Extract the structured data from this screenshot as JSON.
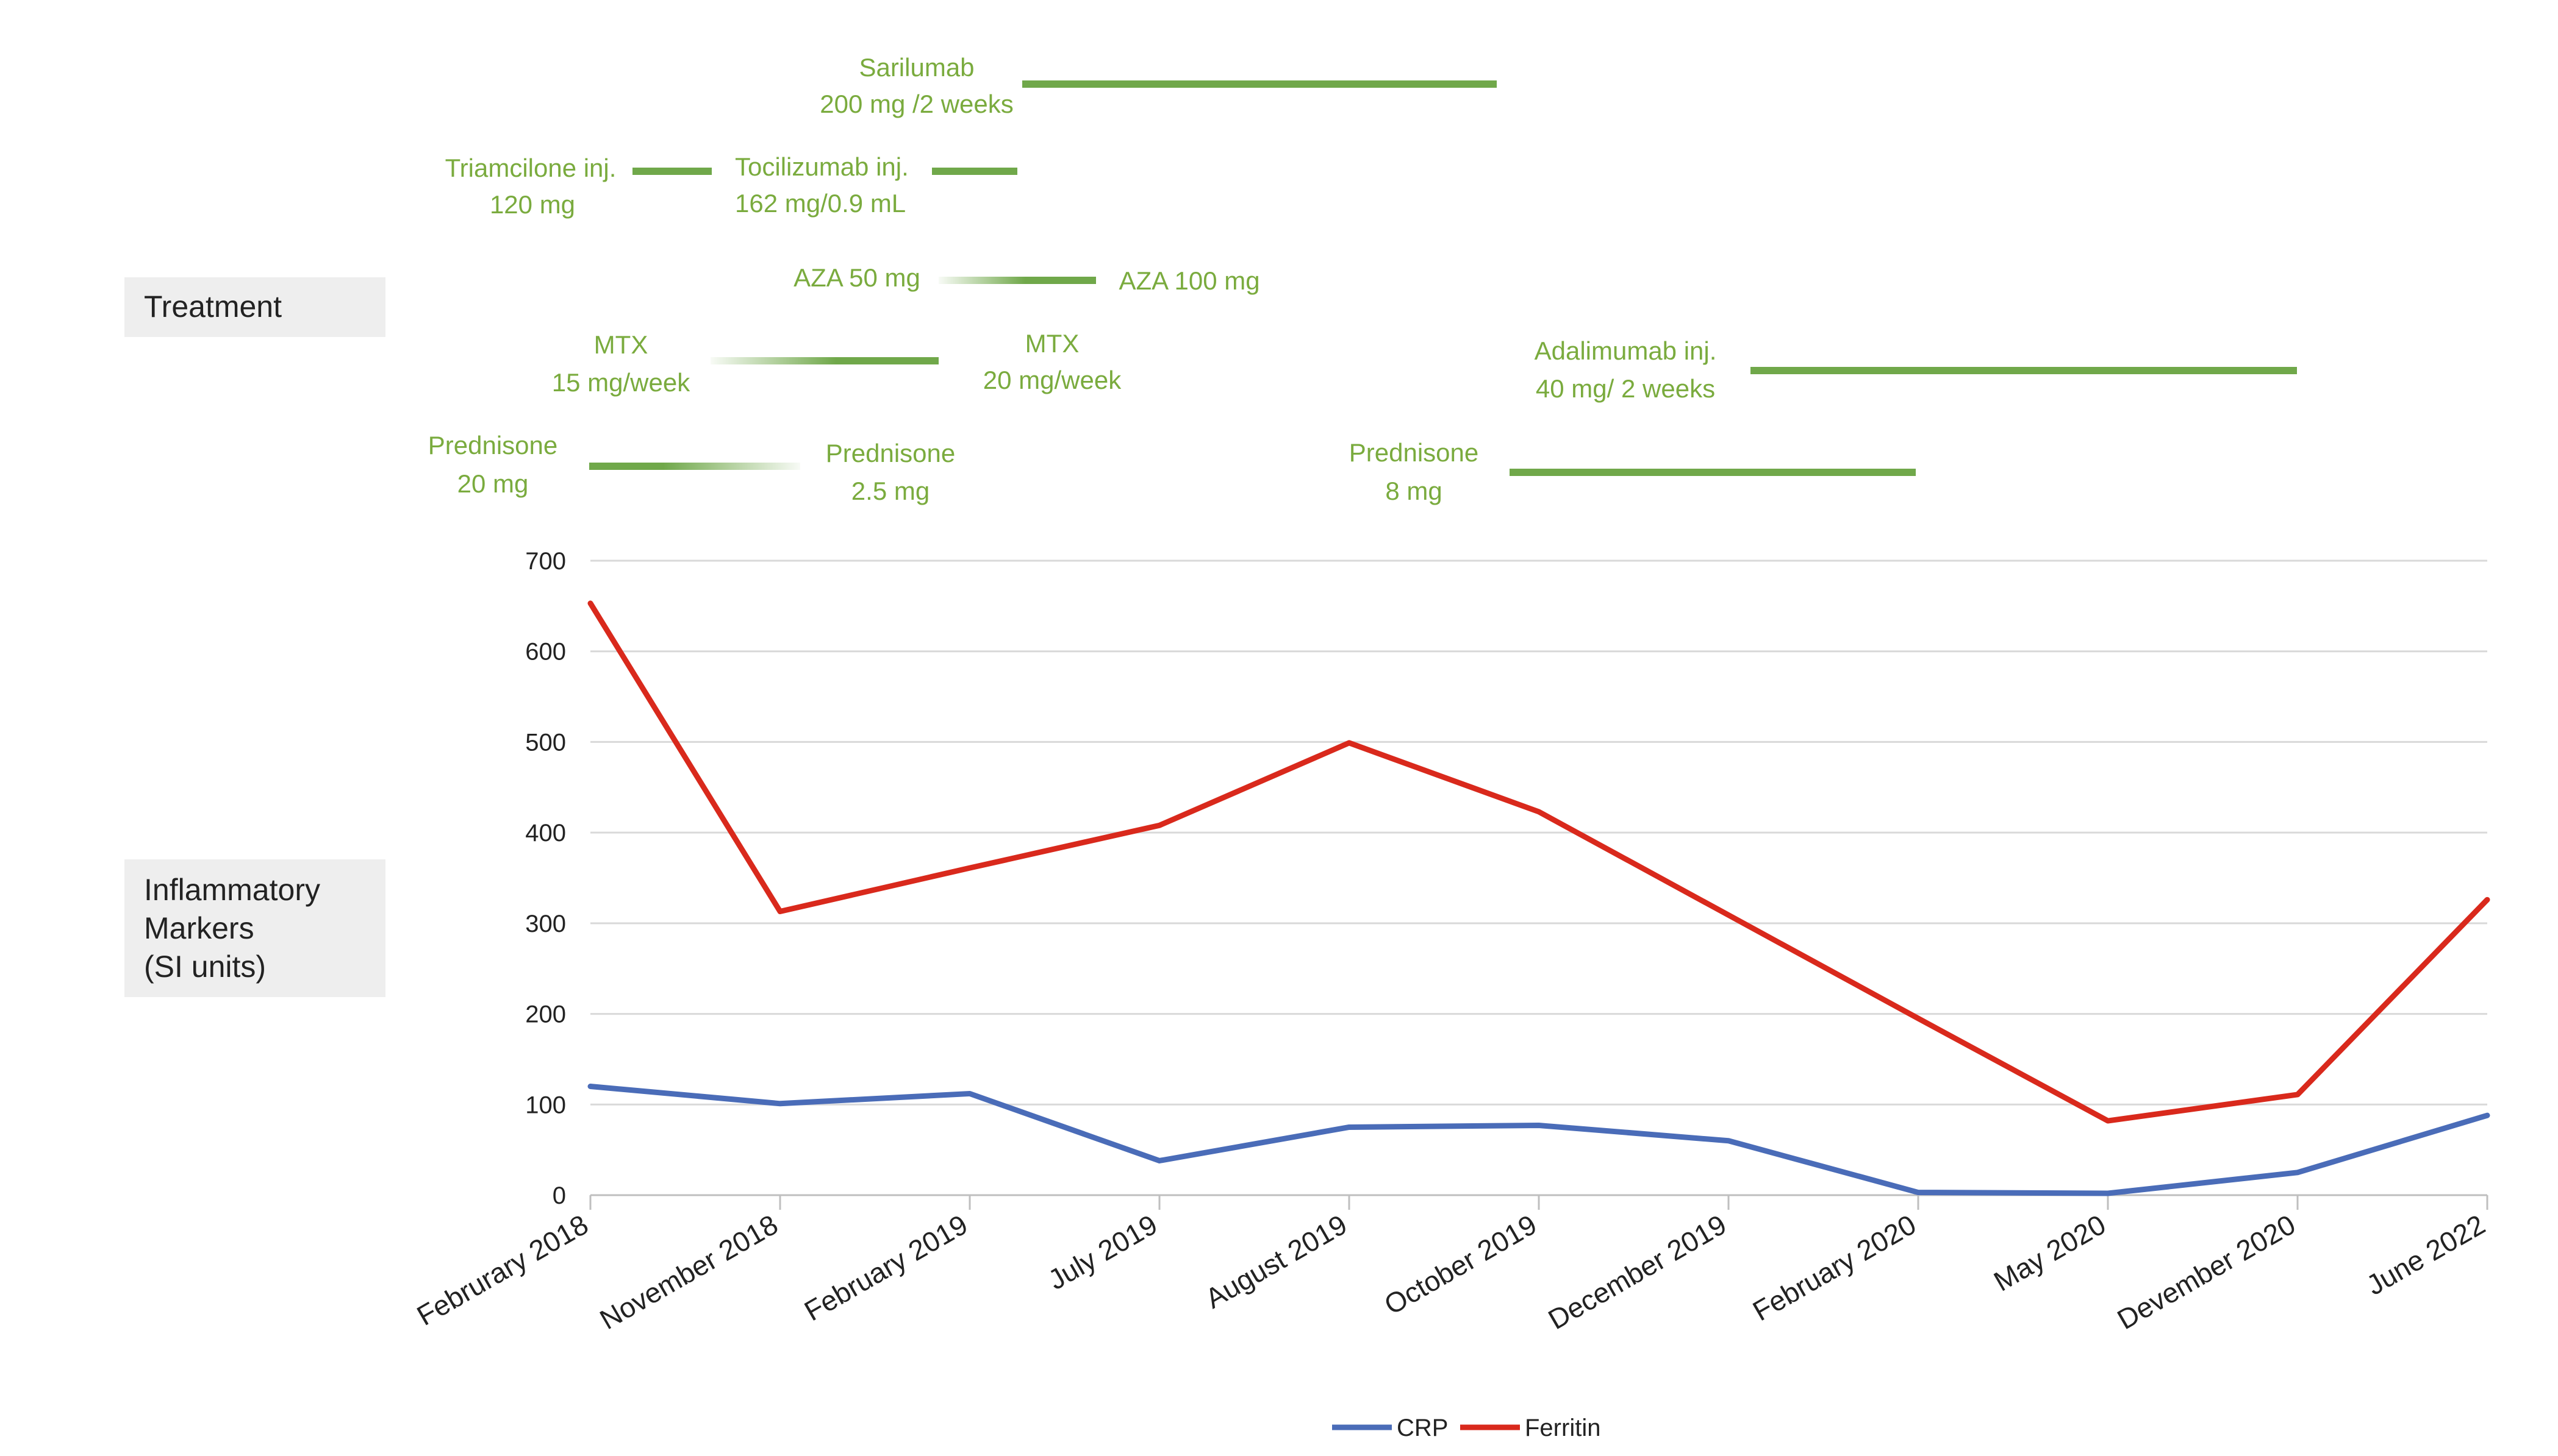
{
  "side_labels": {
    "treatment": "Treatment",
    "markers_lines": [
      "Inflammatory",
      "Markers",
      "(SI units)"
    ],
    "box_fill": "#eeeeee"
  },
  "treatments": [
    {
      "id": "sarilumab",
      "label_lines": [
        "Sarilumab",
        "200 mg /2 weeks"
      ],
      "start": "August 2019",
      "end_offset": -0.1,
      "start_offset": -0.8,
      "style": "solid"
    },
    {
      "id": "triamcilone",
      "label_lines": [
        "Triamcilone inj.",
        "120 mg"
      ],
      "style": "solid"
    },
    {
      "id": "tocilizumab",
      "label_lines": [
        "Tocilizumab inj.",
        "162 mg/0.9 mL"
      ],
      "style": "solid"
    },
    {
      "id": "aza",
      "label_lines": [
        "AZA 50 mg"
      ],
      "end_label": "AZA 100 mg",
      "style": "fade-in"
    },
    {
      "id": "mtx",
      "label_lines": [
        "MTX",
        "15 mg/week"
      ],
      "end_label_lines": [
        "MTX",
        "20 mg/week"
      ],
      "style": "fade-in"
    },
    {
      "id": "adalimumab",
      "label_lines": [
        "Adalimumab inj.",
        "40 mg/ 2 weeks"
      ],
      "style": "solid"
    },
    {
      "id": "prednisone1",
      "label_lines": [
        "Prednisone",
        "20 mg"
      ],
      "end_label_lines": [
        "Prednisone",
        "2.5 mg"
      ],
      "style": "fade-out"
    },
    {
      "id": "prednisone2",
      "label_lines": [
        "Prednisone",
        "8 mg"
      ],
      "style": "solid"
    }
  ],
  "colors": {
    "treatment_text": "#7aab3e",
    "treatment_bar": "#70a84a",
    "crp": "#4a6cb8",
    "ferritin": "#d9291c",
    "grid": "#d9d9d9",
    "axis_text": "#222222"
  },
  "chart_data": {
    "type": "line",
    "categories": [
      "Februrary 2018",
      "November 2018",
      "February 2019",
      "July 2019",
      "August 2019",
      "October 2019",
      "December 2019",
      "February 2020",
      "May 2020",
      "Devember 2020",
      "June 2022"
    ],
    "series": [
      {
        "name": "CRP",
        "values": [
          120,
          101,
          112,
          38,
          75,
          77,
          60,
          3,
          2,
          25,
          88
        ]
      },
      {
        "name": "Ferritin",
        "values": [
          653,
          313,
          361,
          408,
          499,
          423,
          309,
          195,
          82,
          111,
          326
        ]
      }
    ],
    "ylim": [
      0,
      700
    ],
    "yticks": [
      "0",
      "100",
      "200",
      "300",
      "400",
      "500",
      "600",
      "700"
    ],
    "grid": true,
    "legend": "bottom-center"
  }
}
